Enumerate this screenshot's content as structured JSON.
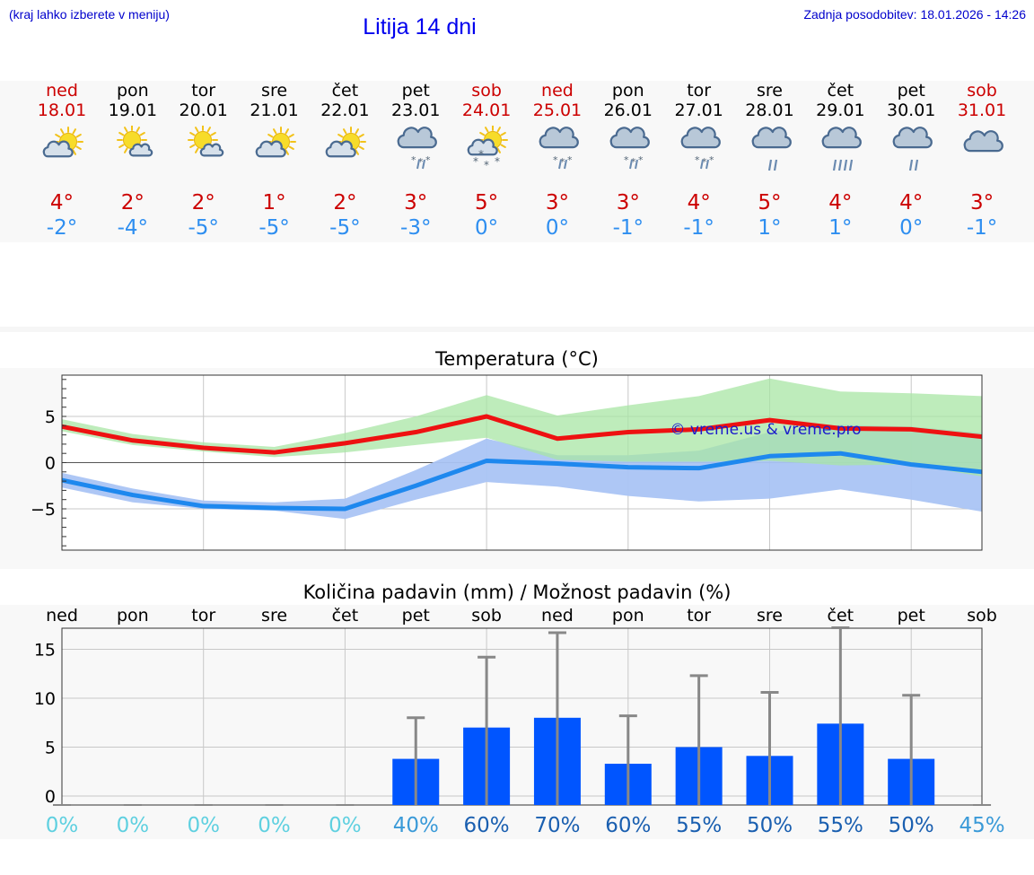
{
  "header": {
    "hint": "(kraj lahko izberete v meniju)",
    "title": "Litija 14 dni",
    "updated": "Zadnja posodobitev: 18.01.2026 - 14:26"
  },
  "days": [
    {
      "name": "ned",
      "date": "18.01",
      "weekend": true,
      "icon": "sun-cloud-icon",
      "max": "4°",
      "min": "-2°"
    },
    {
      "name": "pon",
      "date": "19.01",
      "weekend": false,
      "icon": "sun-small-cloud-icon",
      "max": "2°",
      "min": "-4°"
    },
    {
      "name": "tor",
      "date": "20.01",
      "weekend": false,
      "icon": "sun-small-cloud-icon",
      "max": "2°",
      "min": "-5°"
    },
    {
      "name": "sre",
      "date": "21.01",
      "weekend": false,
      "icon": "sun-cloud-icon",
      "max": "1°",
      "min": "-5°"
    },
    {
      "name": "čet",
      "date": "22.01",
      "weekend": false,
      "icon": "sun-cloud-icon",
      "max": "2°",
      "min": "-5°"
    },
    {
      "name": "pet",
      "date": "23.01",
      "weekend": false,
      "icon": "cloud-snow-icon",
      "max": "3°",
      "min": "-3°"
    },
    {
      "name": "sob",
      "date": "24.01",
      "weekend": true,
      "icon": "sun-cloud-snow-icon",
      "max": "5°",
      "min": "0°"
    },
    {
      "name": "ned",
      "date": "25.01",
      "weekend": true,
      "icon": "cloud-sleet-icon",
      "max": "3°",
      "min": "0°"
    },
    {
      "name": "pon",
      "date": "26.01",
      "weekend": false,
      "icon": "cloud-snow-icon",
      "max": "3°",
      "min": "-1°"
    },
    {
      "name": "tor",
      "date": "27.01",
      "weekend": false,
      "icon": "cloud-snow-icon",
      "max": "4°",
      "min": "-1°"
    },
    {
      "name": "sre",
      "date": "28.01",
      "weekend": false,
      "icon": "cloud-rain-icon",
      "max": "5°",
      "min": "1°"
    },
    {
      "name": "čet",
      "date": "29.01",
      "weekend": false,
      "icon": "cloud-heavy-rain-icon",
      "max": "4°",
      "min": "1°"
    },
    {
      "name": "pet",
      "date": "30.01",
      "weekend": false,
      "icon": "cloud-rain-icon",
      "max": "4°",
      "min": "0°"
    },
    {
      "name": "sob",
      "date": "31.01",
      "weekend": true,
      "icon": "cloud-icon",
      "max": "3°",
      "min": "-1°"
    }
  ],
  "colors": {
    "weekend": "#cc0000",
    "tmax": "#cc0000",
    "tmin": "#2e8ef0",
    "max_line": "#ee1111",
    "min_line": "#1e88ee",
    "max_band": "#a8e6a4",
    "min_band": "#aac4f4",
    "overlap_band": "#7fbfa6",
    "bar": "#0055ff",
    "errbar": "#888888"
  },
  "chart_data": [
    {
      "type": "line",
      "title": "Temperatura (°C)",
      "watermark": "© vreme.us & vreme.pro",
      "x": [
        0,
        1,
        2,
        3,
        4,
        5,
        6,
        7,
        8,
        9,
        10,
        11,
        12,
        13
      ],
      "yticks": [
        "5",
        "0",
        "−5"
      ],
      "ytick_values": [
        5,
        0,
        -5
      ],
      "ylim": [
        -9.5,
        9.5
      ],
      "grid": true,
      "series": [
        {
          "name": "max",
          "values": [
            3.9,
            2.4,
            1.6,
            1.1,
            2.1,
            3.3,
            5.0,
            2.6,
            3.3,
            3.6,
            4.6,
            3.7,
            3.6,
            2.8
          ]
        },
        {
          "name": "max_band_upper",
          "values": [
            4.7,
            3.1,
            2.2,
            1.7,
            3.2,
            5.0,
            7.3,
            5.1,
            6.2,
            7.2,
            9.1,
            7.7,
            7.5,
            7.2
          ]
        },
        {
          "name": "max_band_lower",
          "values": [
            3.4,
            1.9,
            1.2,
            0.6,
            1.1,
            1.9,
            2.7,
            0.3,
            0.1,
            0.1,
            0.2,
            -0.3,
            -0.2,
            -1.5
          ]
        },
        {
          "name": "min",
          "values": [
            -1.9,
            -3.5,
            -4.7,
            -4.9,
            -5.0,
            -2.5,
            0.2,
            -0.1,
            -0.5,
            -0.6,
            0.7,
            1.0,
            -0.2,
            -1.0
          ]
        },
        {
          "name": "min_band_upper",
          "values": [
            -1.1,
            -2.8,
            -4.1,
            -4.3,
            -3.9,
            -0.8,
            2.6,
            0.8,
            0.8,
            1.3,
            3.3,
            4.1,
            3.9,
            3.2
          ]
        },
        {
          "name": "min_band_lower",
          "values": [
            -2.7,
            -4.3,
            -5.0,
            -5.2,
            -6.1,
            -4.0,
            -2.1,
            -2.6,
            -3.6,
            -4.2,
            -3.9,
            -2.9,
            -4.0,
            -5.3
          ]
        }
      ]
    },
    {
      "type": "bar",
      "title": "Količina padavin (mm) / Možnost padavin (%)",
      "categories": [
        "ned",
        "pon",
        "tor",
        "sre",
        "čet",
        "pet",
        "sob",
        "ned",
        "pon",
        "tor",
        "sre",
        "čet",
        "pet",
        "sob"
      ],
      "values": [
        0,
        0,
        0,
        0,
        0,
        3.8,
        7.0,
        8.0,
        3.3,
        5.0,
        4.1,
        7.4,
        3.8,
        0
      ],
      "error_high": [
        0,
        0,
        0,
        0,
        0,
        8.0,
        14.2,
        16.7,
        8.2,
        12.3,
        10.6,
        17.2,
        10.3,
        0
      ],
      "yticks": [
        "15",
        "10",
        "5",
        "0"
      ],
      "ytick_values": [
        15,
        10,
        5,
        0
      ],
      "ylim": [
        -1,
        18
      ],
      "grid": true,
      "probabilities": [
        "0%",
        "0%",
        "0%",
        "0%",
        "0%",
        "40%",
        "60%",
        "70%",
        "60%",
        "55%",
        "50%",
        "55%",
        "50%",
        "45%"
      ],
      "probability_values": [
        0,
        0,
        0,
        0,
        0,
        40,
        60,
        70,
        60,
        55,
        50,
        55,
        50,
        45
      ]
    }
  ]
}
